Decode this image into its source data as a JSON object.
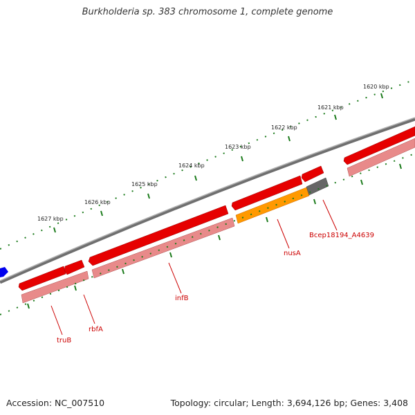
{
  "title": "Burkholderia sp. 383 chromosome 1, complete genome",
  "footer": {
    "accession": "Accession: NC_007510",
    "summary": "Topology: circular; Length: 3,694,126 bp; Genes: 3,408"
  },
  "scale_labels": [
    "1620 kbp",
    "1621 kbp",
    "1622 kbp",
    "1623 kbp",
    "1624 kbp",
    "1625 kbp",
    "1626 kbp",
    "1627 kbp"
  ],
  "gene_labels": [
    "truB",
    "rbfA",
    "infB",
    "nusA",
    "Bcep18194_A4639"
  ],
  "colors": {
    "backbone": "#7a7a7a",
    "gene_red": "#e60000",
    "gene_pink": "#e88a8a",
    "gene_orange": "#ff9900",
    "gene_gray": "#666666",
    "gene_blue": "#0000ee",
    "tick_green": "#1a7a1a",
    "label_red": "#cc0000"
  }
}
